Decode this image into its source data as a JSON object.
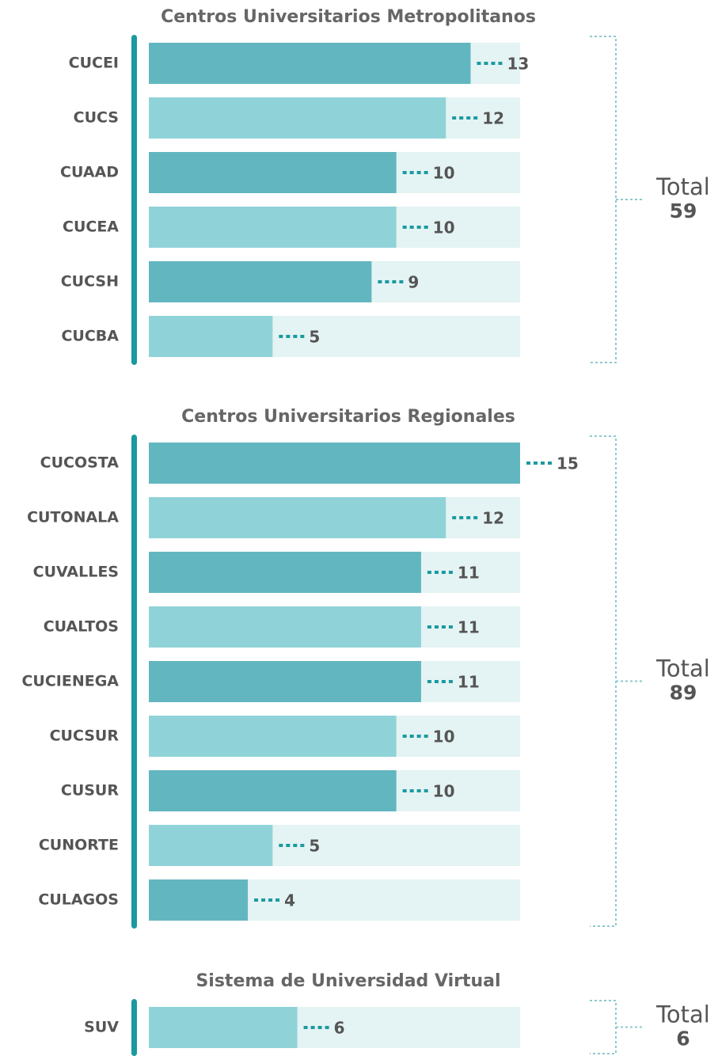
{
  "chart_data": [
    {
      "type": "bar",
      "title": "Centros Universitarios Metropolitanos",
      "categories": [
        "CUCEI",
        "CUCS",
        "CUAAD",
        "CUCEA",
        "CUCSH",
        "CUCBA"
      ],
      "values": [
        13,
        12,
        10,
        10,
        9,
        5
      ],
      "colors": [
        "#62b6c0",
        "#8fd3d8",
        "#62b6c0",
        "#8fd3d8",
        "#62b6c0",
        "#8fd3d8"
      ],
      "xlim": [
        0,
        15
      ],
      "total_label": "Total",
      "total": 59
    },
    {
      "type": "bar",
      "title": "Centros Universitarios Regionales",
      "categories": [
        "CUCOSTA",
        "CUTONALA",
        "CUVALLES",
        "CUALTOS",
        "CUCIENEGA",
        "CUCSUR",
        "CUSUR",
        "CUNORTE",
        "CULAGOS"
      ],
      "values": [
        15,
        12,
        11,
        11,
        11,
        10,
        10,
        5,
        4
      ],
      "colors": [
        "#62b6c0",
        "#8fd3d8",
        "#62b6c0",
        "#8fd3d8",
        "#62b6c0",
        "#8fd3d8",
        "#62b6c0",
        "#8fd3d8",
        "#62b6c0"
      ],
      "xlim": [
        0,
        15
      ],
      "total_label": "Total",
      "total": 89
    },
    {
      "type": "bar",
      "title": "Sistema de Universidad Virtual",
      "categories": [
        "SUV"
      ],
      "values": [
        6
      ],
      "colors": [
        "#8fd3d8"
      ],
      "xlim": [
        0,
        15
      ],
      "total_label": "Total",
      "total": 6
    }
  ]
}
